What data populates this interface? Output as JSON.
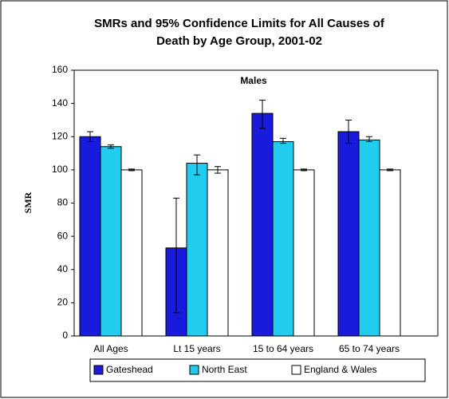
{
  "chart_data": {
    "type": "bar",
    "title_lines": [
      "SMRs and 95% Confidence Limits for All Causes of",
      "Death by Age Group, 2001-02"
    ],
    "annotation": "Males",
    "y_label": "SMR",
    "categories": [
      "All Ages",
      "Lt 15 years",
      "15 to 64 years",
      "65 to 74 years"
    ],
    "series": [
      {
        "name": "Gateshead",
        "color": "#1a1adc",
        "values": [
          120,
          53,
          134,
          123
        ],
        "ci_low": [
          117,
          14,
          125,
          116
        ],
        "ci_high": [
          123,
          83,
          142,
          130
        ]
      },
      {
        "name": "North East",
        "color": "#22ccee",
        "values": [
          114,
          104,
          117,
          118
        ],
        "ci_low": [
          113,
          97,
          116,
          117
        ],
        "ci_high": [
          115,
          109,
          119,
          120
        ]
      },
      {
        "name": "England & Wales",
        "color": "#ffffff",
        "values": [
          100,
          100,
          100,
          100
        ],
        "ci_low": [
          99.5,
          98,
          99.5,
          99.5
        ],
        "ci_high": [
          100.5,
          102,
          100.5,
          100.5
        ]
      }
    ],
    "ylim": [
      0,
      160
    ],
    "yticks": [
      0,
      20,
      40,
      60,
      80,
      100,
      120,
      140,
      160
    ],
    "legend": "bottom"
  }
}
